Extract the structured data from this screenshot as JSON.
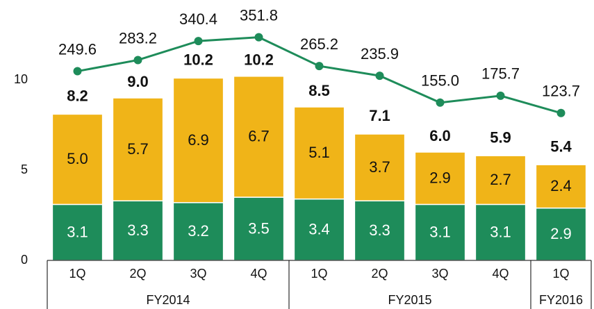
{
  "chart_data": {
    "type": "bar",
    "stacked": true,
    "categories": [
      "1Q",
      "2Q",
      "3Q",
      "4Q",
      "1Q",
      "2Q",
      "3Q",
      "4Q",
      "1Q"
    ],
    "category_groups": [
      "FY2014",
      "FY2014",
      "FY2014",
      "FY2014",
      "FY2015",
      "FY2015",
      "FY2015",
      "FY2015",
      "FY2016"
    ],
    "series": [
      {
        "color": "#1e8c5a",
        "values": [
          3.1,
          3.3,
          3.2,
          3.5,
          3.4,
          3.3,
          3.1,
          3.1,
          2.9
        ]
      },
      {
        "color": "#f0b418",
        "values": [
          5,
          5.7,
          6.9,
          6.7,
          5.1,
          3.7,
          2.9,
          2.7,
          2.4
        ],
        "value_labels": [
          "5.0",
          "5.7",
          "6.9",
          "6.7",
          "5.1",
          "3.7",
          "2.9",
          "2.7",
          "2.4"
        ]
      },
      {
        "type": "line",
        "axis": "y2",
        "color": "#1e8c5a",
        "values": [
          249.6,
          283.2,
          340.4,
          351.8,
          265.2,
          235.9,
          155,
          175.7,
          123.7
        ],
        "value_labels": [
          "249.6",
          "283.2",
          "340.4",
          "351.8",
          "265.2",
          "235.9",
          "155.0",
          "175.7",
          "123.7"
        ]
      }
    ],
    "totals": [
      8.2,
      9,
      10.2,
      10.2,
      8.5,
      7.1,
      6,
      5.9,
      5.4
    ],
    "total_labels": [
      "8.2",
      "9.0",
      "10.2",
      "10.2",
      "8.5",
      "7.1",
      "6.0",
      "5.9",
      "5.4"
    ],
    "ylim": [
      0,
      14
    ],
    "yticks": [
      0,
      5,
      10
    ],
    "y2lim": [
      -320,
      441
    ]
  }
}
